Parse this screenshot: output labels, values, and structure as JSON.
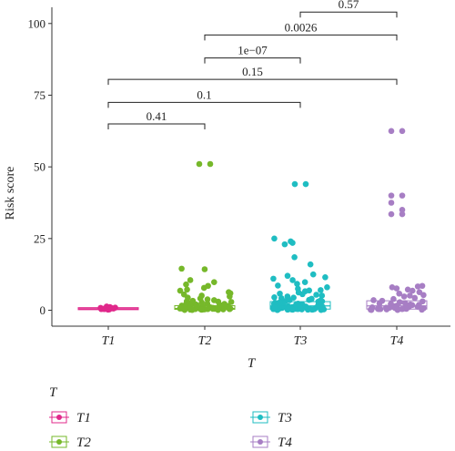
{
  "chart_data": {
    "type": "boxplot-jitter",
    "xlabel": "T",
    "ylabel": "Risk score",
    "ylim": [
      0,
      105
    ],
    "yticks": [
      0,
      25,
      50,
      75,
      100
    ],
    "grid": false,
    "legend": {
      "title": "T",
      "placement": "bottom",
      "entries": [
        "T1",
        "T2",
        "T3",
        "T4"
      ]
    },
    "categories": [
      "T1",
      "T2",
      "T3",
      "T4"
    ],
    "colors": {
      "T1": "#e0288b",
      "T2": "#76b82a",
      "T3": "#1fbdc2",
      "T4": "#a77ec4"
    },
    "boxes": [
      {
        "group": "T1",
        "q1": 0.2,
        "median": 0.5,
        "q3": 0.9
      },
      {
        "group": "T2",
        "q1": 0.3,
        "median": 0.6,
        "q3": 1.6
      },
      {
        "group": "T3",
        "q1": 0.4,
        "median": 1.5,
        "q3": 3.0
      },
      {
        "group": "T4",
        "q1": 0.4,
        "median": 1.5,
        "q3": 3.3
      }
    ],
    "points": {
      "T1": [
        0.2,
        0.3,
        0.4,
        0.5,
        0.6,
        0.7,
        0.8,
        0.9,
        1.1,
        1.3,
        0.4,
        0.6,
        0.8
      ],
      "T2": [
        51,
        51,
        14.5,
        14.3,
        10.5,
        9.8,
        9.0,
        8.5,
        7.8,
        7.2,
        6.8,
        6.3,
        5.9,
        5.5,
        5.1,
        4.8,
        4.4,
        4.1,
        3.8,
        3.5,
        3.3,
        3.1,
        2.9,
        2.7,
        2.5,
        2.3,
        2.1,
        2.0,
        1.9,
        1.8,
        1.7,
        1.6,
        1.5,
        1.4,
        1.3,
        1.2,
        1.1,
        1.0,
        0.9,
        0.9,
        0.8,
        0.8,
        0.7,
        0.7,
        0.6,
        0.6,
        0.5,
        0.5,
        0.5,
        0.4,
        0.4,
        0.4,
        0.3,
        0.3,
        0.3,
        0.2,
        0.2,
        0.2,
        0.2,
        0.1,
        0.1,
        0.1,
        1.2,
        1.5,
        0.6,
        0.9,
        2.2,
        3.0,
        0.8,
        0.4
      ],
      "T3": [
        44,
        44,
        25,
        24,
        23.5,
        23,
        18.5,
        16,
        12.5,
        12,
        11.5,
        11,
        10.5,
        9.8,
        9.2,
        8.6,
        8.0,
        7.5,
        7.0,
        6.6,
        6.2,
        5.8,
        5.4,
        5.1,
        4.8,
        4.5,
        4.2,
        4.0,
        3.8,
        3.6,
        3.4,
        3.2,
        3.0,
        2.8,
        2.6,
        2.4,
        2.2,
        2.0,
        1.9,
        1.8,
        1.7,
        1.6,
        1.5,
        1.4,
        1.3,
        1.2,
        1.1,
        1.0,
        0.9,
        0.9,
        0.8,
        0.8,
        0.7,
        0.7,
        0.6,
        0.6,
        0.5,
        0.5,
        0.5,
        0.4,
        0.4,
        0.4,
        0.3,
        0.3,
        0.3,
        0.2,
        0.2,
        0.2,
        0.2,
        0.1,
        0.1,
        0.1,
        1.5,
        2.5,
        3.5,
        0.9,
        1.3,
        2.1,
        4.4,
        5.6,
        0.6,
        0.3,
        1.9,
        2.7,
        3.1,
        6.9,
        0.8,
        1.2,
        0.5,
        2.3
      ],
      "T4": [
        62.5,
        62.5,
        40,
        40,
        37.5,
        35,
        33.5,
        33.5,
        8.5,
        8.3,
        8.0,
        7.6,
        7.2,
        6.8,
        6.3,
        5.8,
        5.3,
        4.8,
        4.3,
        3.9,
        3.5,
        3.1,
        2.8,
        2.5,
        2.2,
        2.0,
        1.8,
        1.6,
        1.4,
        1.2,
        1.1,
        1.0,
        0.9,
        0.8,
        0.7,
        0.6,
        0.5,
        0.5,
        0.4,
        0.4,
        0.3,
        0.3,
        0.2,
        0.2,
        0.1,
        0.1,
        1.5,
        2.4,
        0.7,
        3.3,
        5.1,
        0.9,
        1.9,
        0.4
      ]
    },
    "comparisons": [
      {
        "from": "T3",
        "to": "T4",
        "label": "0.57",
        "y": 104
      },
      {
        "from": "T2",
        "to": "T4",
        "label": "0.0026",
        "y": 96
      },
      {
        "from": "T2",
        "to": "T3",
        "label": "1e−07",
        "y": 88
      },
      {
        "from": "T1",
        "to": "T4",
        "label": "0.15",
        "y": 80.5
      },
      {
        "from": "T1",
        "to": "T3",
        "label": "0.1",
        "y": 72.5
      },
      {
        "from": "T1",
        "to": "T2",
        "label": "0.41",
        "y": 65
      }
    ]
  }
}
